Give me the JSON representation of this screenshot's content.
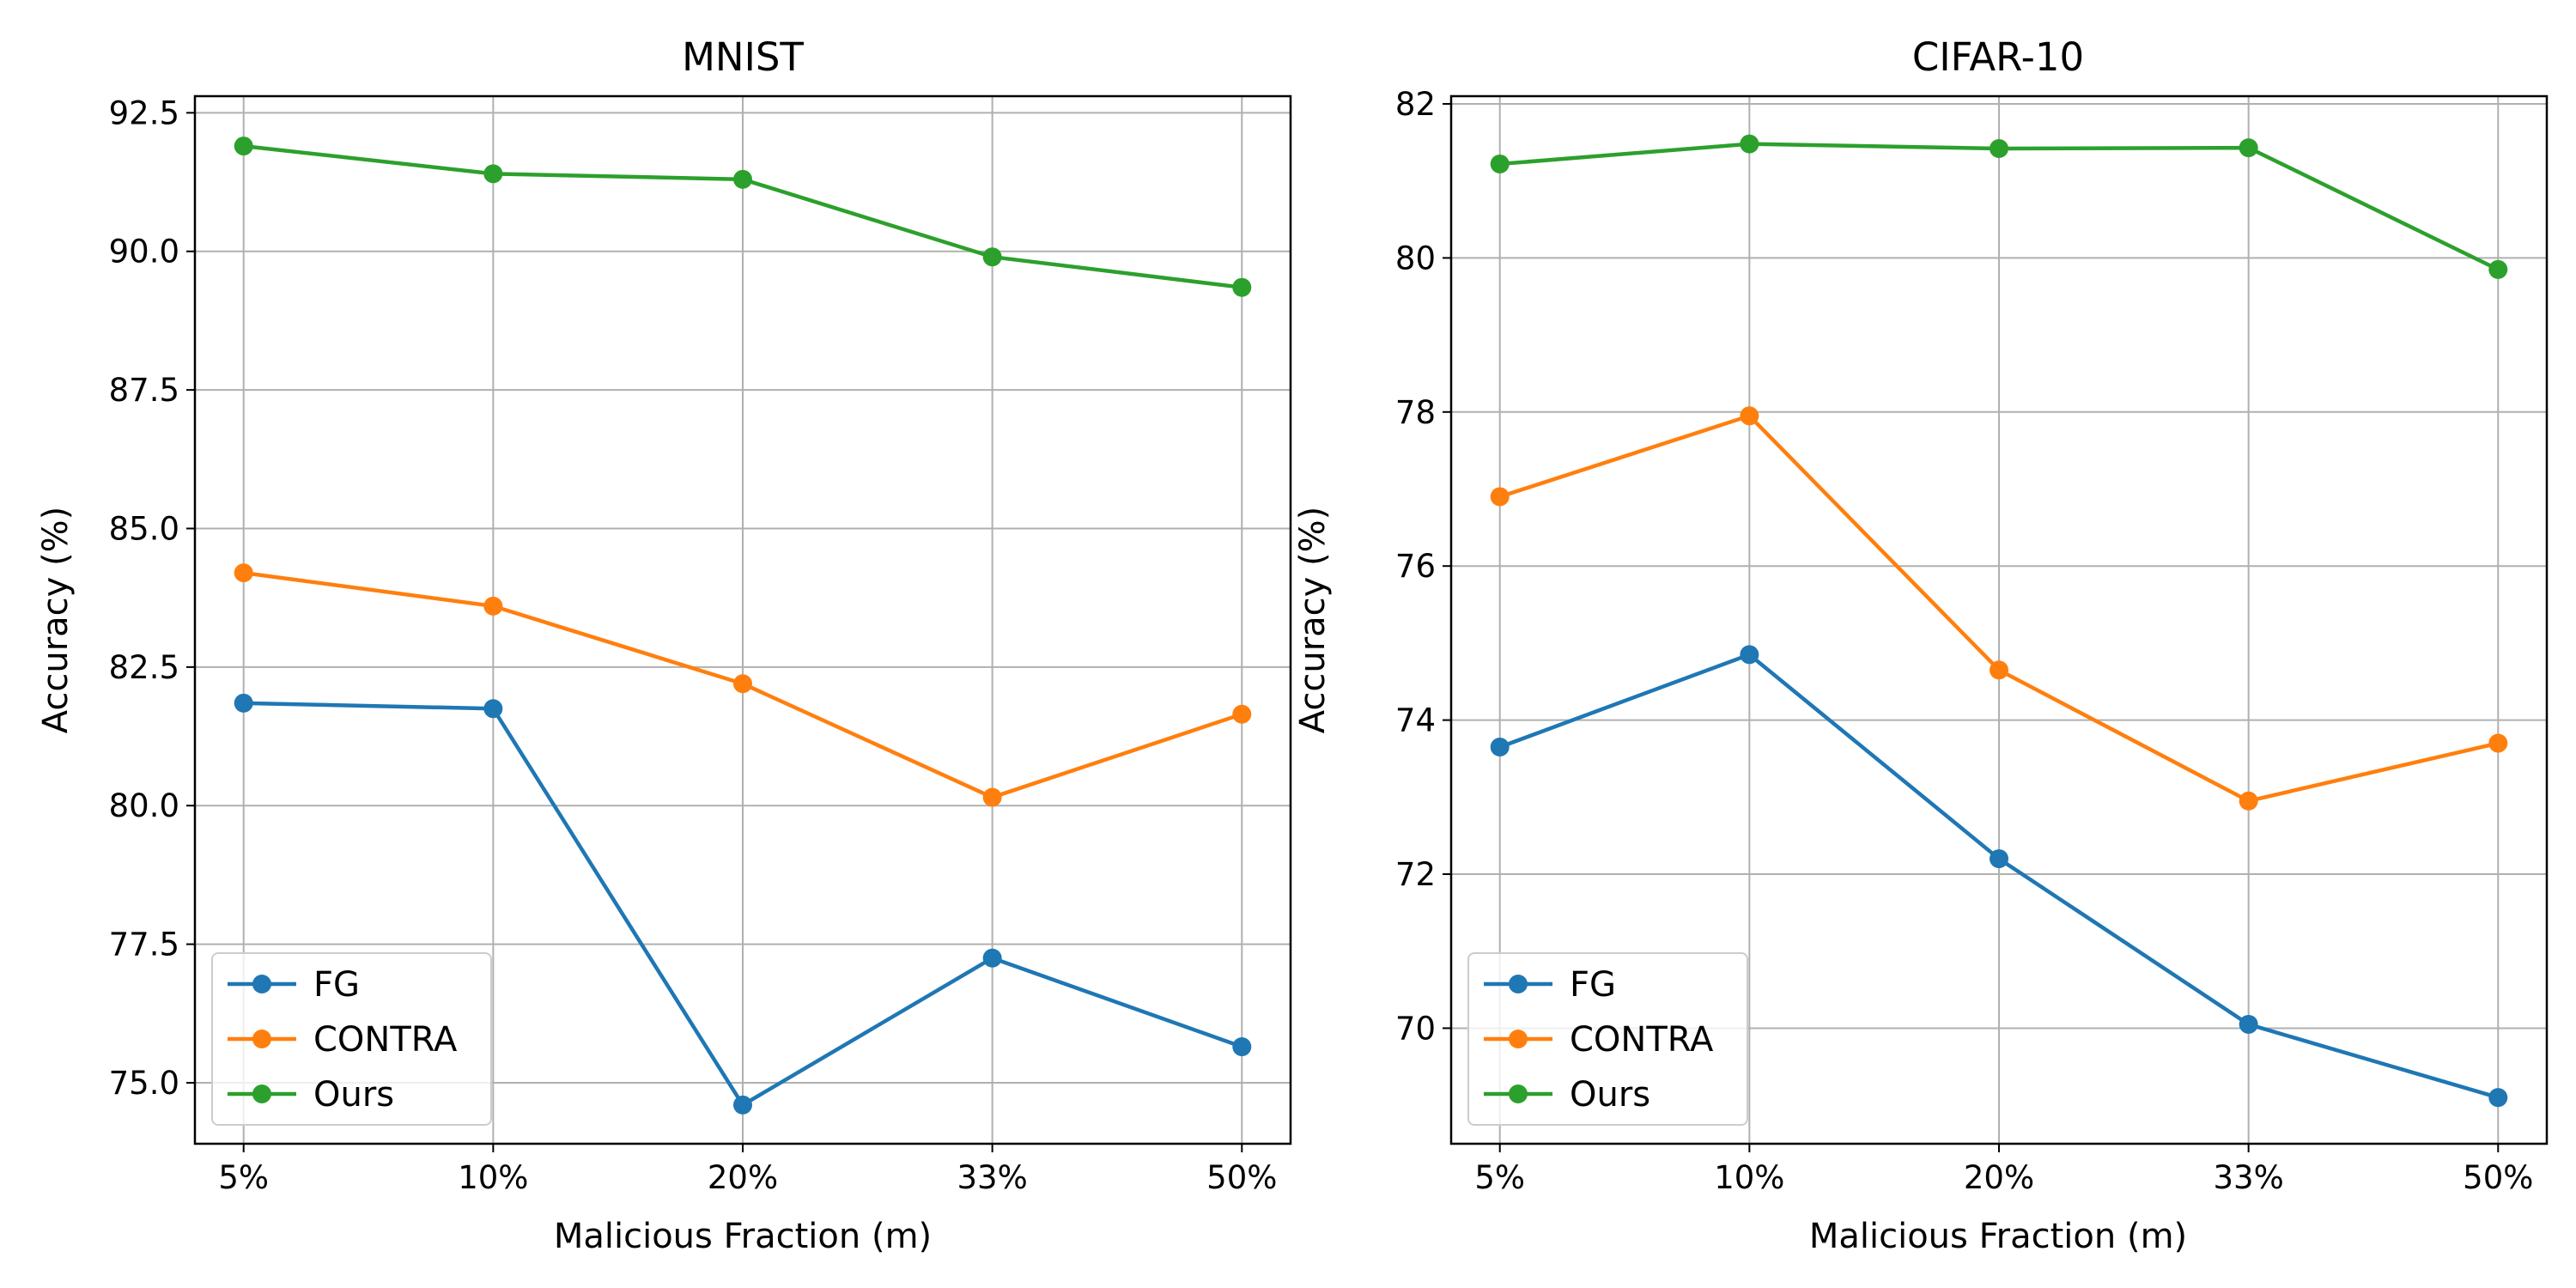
{
  "chart_data": [
    {
      "type": "line",
      "title": "MNIST",
      "xlabel": "Malicious Fraction (m)",
      "ylabel": "Accuracy (%)",
      "categories": [
        "5%",
        "10%",
        "20%",
        "33%",
        "50%"
      ],
      "ylim": [
        73.9,
        92.8
      ],
      "yticks": [
        75.0,
        77.5,
        80.0,
        82.5,
        85.0,
        87.5,
        90.0,
        92.5
      ],
      "ytick_labels": [
        "75.0",
        "77.5",
        "80.0",
        "82.5",
        "85.0",
        "87.5",
        "90.0",
        "92.5"
      ],
      "grid": true,
      "legend_position": "lower-left",
      "series": [
        {
          "name": "FG",
          "color": "#1f77b4",
          "values": [
            81.85,
            81.75,
            74.6,
            77.25,
            75.65
          ]
        },
        {
          "name": "CONTRA",
          "color": "#ff7f0e",
          "values": [
            84.2,
            83.6,
            82.2,
            80.15,
            81.65
          ]
        },
        {
          "name": "Ours",
          "color": "#2ca02c",
          "values": [
            91.9,
            91.4,
            91.3,
            89.9,
            89.35
          ]
        }
      ]
    },
    {
      "type": "line",
      "title": "CIFAR-10",
      "xlabel": "Malicious Fraction (m)",
      "ylabel": "Accuracy (%)",
      "categories": [
        "5%",
        "10%",
        "20%",
        "33%",
        "50%"
      ],
      "ylim": [
        68.5,
        82.1
      ],
      "yticks": [
        70,
        72,
        74,
        76,
        78,
        80,
        82
      ],
      "ytick_labels": [
        "70",
        "72",
        "74",
        "76",
        "78",
        "80",
        "82"
      ],
      "grid": true,
      "legend_position": "lower-left",
      "series": [
        {
          "name": "FG",
          "color": "#1f77b4",
          "values": [
            73.65,
            74.85,
            72.2,
            70.05,
            69.1
          ]
        },
        {
          "name": "CONTRA",
          "color": "#ff7f0e",
          "values": [
            76.9,
            77.95,
            74.65,
            72.95,
            73.7
          ]
        },
        {
          "name": "Ours",
          "color": "#2ca02c",
          "values": [
            81.22,
            81.48,
            81.42,
            81.43,
            79.85
          ]
        }
      ]
    }
  ]
}
